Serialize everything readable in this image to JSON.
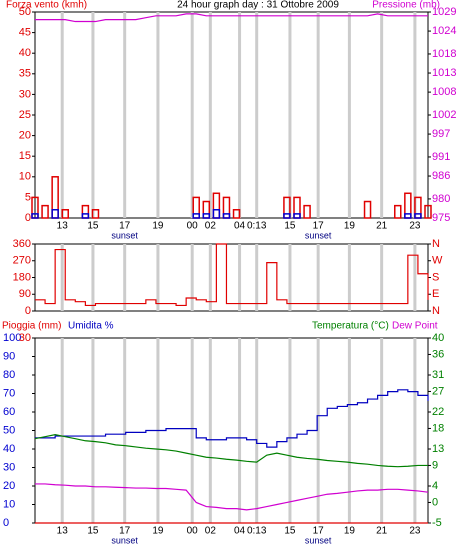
{
  "chart_data": [
    {
      "type": "combo",
      "title": "24 hour graph day : 31 Ottobre 2009",
      "ylabel": "Forza vento (kmh)",
      "y2label": "Pressione (mb)",
      "xlim": [
        0,
        39
      ],
      "xticks": [
        {
          "value": 2.7,
          "label": "13"
        },
        {
          "value": 5.75,
          "label": "15"
        },
        {
          "value": 8.9,
          "label": "17"
        },
        {
          "value": 12.2,
          "label": "19"
        },
        {
          "value": 15.6,
          "label": "00"
        },
        {
          "value": 17.4,
          "label": "02"
        },
        {
          "value": 20.3,
          "label": "04"
        },
        {
          "value": 22,
          "label": "0:13"
        },
        {
          "value": 25.3,
          "label": "15"
        },
        {
          "value": 28.1,
          "label": "17"
        },
        {
          "value": 31.2,
          "label": "19"
        },
        {
          "value": 34.4,
          "label": "21"
        },
        {
          "value": 37.7,
          "label": "23"
        }
      ],
      "annotations": [
        {
          "text": "sunset",
          "x": 8.9
        },
        {
          "text": "sunset",
          "x": 28.1
        }
      ],
      "ylim": [
        0,
        50
      ],
      "yticks": [
        0,
        5,
        10,
        15,
        20,
        25,
        30,
        35,
        40,
        45,
        50
      ],
      "ytick_color": "#e00000",
      "y2lim": [
        975,
        1029
      ],
      "y2ticks": [
        975,
        980,
        986,
        991,
        997,
        1002,
        1008,
        1013,
        1018,
        1024,
        1029
      ],
      "y2tick_color": "#d000d0",
      "series": [
        {
          "name": "Forza vento (kmh)",
          "color": "#e00000",
          "kind": "bar",
          "axis": "y",
          "values": [
            5,
            3,
            10,
            2,
            0,
            3,
            2,
            0,
            0,
            0,
            0,
            0,
            0,
            0,
            0,
            0,
            5,
            4,
            6,
            5,
            2,
            0,
            0,
            0,
            0,
            5,
            5,
            3,
            0,
            0,
            0,
            0,
            0,
            4,
            0,
            0,
            3,
            6,
            5,
            3
          ]
        },
        {
          "color": "#0000d0",
          "kind": "bar",
          "axis": "y",
          "values": [
            1,
            0,
            2,
            0,
            0,
            1,
            0,
            0,
            0,
            0,
            0,
            0,
            0,
            0,
            0,
            0,
            1,
            1,
            2,
            1,
            0,
            0,
            0,
            0,
            0,
            1,
            1,
            0,
            0,
            0,
            0,
            0,
            0,
            0,
            0,
            0,
            0,
            1,
            1,
            0
          ]
        },
        {
          "name": "Pressione (mb)",
          "color": "#d000d0",
          "kind": "line",
          "axis": "y2",
          "values": [
            1027,
            1027,
            1027,
            1027,
            1026.5,
            1026.5,
            1026.5,
            1027,
            1027,
            1027,
            1027,
            1027.5,
            1028,
            1028,
            1028,
            1028.5,
            1028.5,
            1028,
            1028,
            1028,
            1028,
            1028,
            1028,
            1028,
            1028,
            1028,
            1028,
            1028,
            1028,
            1028,
            1028,
            1028,
            1028,
            1028,
            1028.5,
            1028,
            1028,
            1028,
            1028,
            1028
          ]
        }
      ]
    },
    {
      "type": "combo",
      "xlim": [
        0,
        39
      ],
      "xticks": [
        {
          "value": 2.7,
          "label": "13"
        },
        {
          "value": 5.75,
          "label": "15"
        },
        {
          "value": 8.9,
          "label": "17"
        },
        {
          "value": 12.2,
          "label": "19"
        },
        {
          "value": 15.6,
          "label": "00"
        },
        {
          "value": 17.4,
          "label": "02"
        },
        {
          "value": 20.3,
          "label": "04"
        },
        {
          "value": 22,
          "label": "0:13"
        },
        {
          "value": 25.3,
          "label": "15"
        },
        {
          "value": 28.1,
          "label": "17"
        },
        {
          "value": 31.2,
          "label": "19"
        },
        {
          "value": 34.4,
          "label": "21"
        },
        {
          "value": 37.7,
          "label": "23"
        }
      ],
      "ylim": [
        0,
        360
      ],
      "yticks": [
        0,
        90,
        180,
        270,
        360
      ],
      "ytick_color": "#e00000",
      "y2lim": [
        0,
        360
      ],
      "y2ticks": [
        {
          "value": 360,
          "label": "N"
        },
        {
          "value": 270,
          "label": "W"
        },
        {
          "value": 180,
          "label": "S"
        },
        {
          "value": 90,
          "label": "E"
        },
        {
          "value": 0,
          "label": "N"
        }
      ],
      "y2tick_color": "#e00000",
      "series": [
        {
          "color": "#e00000",
          "kind": "step",
          "axis": "y",
          "values": [
            60,
            40,
            330,
            60,
            50,
            30,
            40,
            40,
            40,
            40,
            40,
            60,
            40,
            40,
            30,
            70,
            60,
            50,
            360,
            40,
            40,
            40,
            40,
            260,
            60,
            40,
            40,
            40,
            40,
            40,
            40,
            40,
            40,
            40,
            40,
            40,
            40,
            300,
            200,
            60
          ]
        }
      ]
    },
    {
      "type": "combo",
      "xlim": [
        0,
        39
      ],
      "xticks": [
        {
          "value": 2.7,
          "label": "13"
        },
        {
          "value": 5.75,
          "label": "15"
        },
        {
          "value": 8.9,
          "label": "17"
        },
        {
          "value": 12.2,
          "label": "19"
        },
        {
          "value": 15.6,
          "label": "00"
        },
        {
          "value": 17.4,
          "label": "02"
        },
        {
          "value": 20.3,
          "label": "04"
        },
        {
          "value": 22,
          "label": "0:13"
        },
        {
          "value": 25.3,
          "label": "15"
        },
        {
          "value": 28.1,
          "label": "17"
        },
        {
          "value": 31.2,
          "label": "19"
        },
        {
          "value": 34.4,
          "label": "21"
        },
        {
          "value": 37.7,
          "label": "23"
        }
      ],
      "annotations": [
        {
          "text": "sunset",
          "x": 8.9
        },
        {
          "text": "sunset",
          "x": 28.1
        }
      ],
      "ylim": [
        0,
        100
      ],
      "yticks": [
        0,
        10,
        20,
        30,
        40,
        50,
        60,
        70,
        80,
        90,
        100
      ],
      "ytick_color": "#0000d0",
      "y3lim": [
        0,
        30
      ],
      "y3ticks": [
        30
      ],
      "y3tick_color": "#e00000",
      "y2lim": [
        -5,
        40
      ],
      "y2ticks": [
        -5,
        0,
        4,
        9,
        13,
        18,
        22,
        27,
        31,
        36,
        40
      ],
      "y2tick_color": "#008000",
      "series": [
        {
          "name": "Pioggia (mm)",
          "color": "#e00000",
          "kind": "line",
          "axis": "y3",
          "values": [
            0,
            0,
            0,
            0,
            0,
            0,
            0,
            0,
            0,
            0,
            0,
            0,
            0,
            0,
            0,
            0,
            0,
            0,
            0,
            0,
            0,
            0,
            0,
            0,
            0,
            0,
            0,
            0,
            0,
            0,
            0,
            0,
            0,
            0,
            0,
            0,
            0,
            0,
            0,
            0
          ]
        },
        {
          "name": "Umidita %",
          "color": "#0000c0",
          "kind": "step",
          "axis": "y",
          "values": [
            46,
            46,
            47,
            47,
            47,
            47,
            47,
            48,
            48,
            49,
            49,
            50,
            50,
            51,
            51,
            51,
            46,
            45,
            45,
            46,
            46,
            45,
            43,
            41,
            44,
            46,
            48,
            50,
            58,
            62,
            63,
            64,
            65,
            67,
            69,
            71,
            72,
            71,
            69,
            66
          ]
        },
        {
          "name": "Temperatura (°C)",
          "color": "#008000",
          "kind": "line",
          "axis": "y2",
          "values": [
            15.5,
            16,
            16.5,
            16,
            15.5,
            15,
            14.8,
            14.5,
            14,
            13.8,
            13.5,
            13.2,
            13,
            12.8,
            12.5,
            12,
            11.5,
            11,
            10.8,
            10.5,
            10.3,
            10,
            9.8,
            11.5,
            12,
            11.5,
            11,
            10.7,
            10.5,
            10.2,
            10,
            9.8,
            9.5,
            9.3,
            9,
            8.8,
            8.7,
            8.8,
            9,
            9
          ]
        },
        {
          "name": "Dew Point",
          "color": "#d000d0",
          "kind": "line",
          "axis": "y2",
          "values": [
            4.5,
            4.5,
            4.3,
            4.2,
            4,
            4,
            3.8,
            3.8,
            3.7,
            3.6,
            3.5,
            3.5,
            3.4,
            3.4,
            3.2,
            3,
            0,
            -1,
            -1.2,
            -1.5,
            -1.5,
            -1.8,
            -1.5,
            -1,
            -0.5,
            0,
            0.5,
            1,
            1.5,
            2,
            2.2,
            2.5,
            2.8,
            3,
            3,
            3.2,
            3.2,
            3,
            2.8,
            2.5
          ]
        }
      ]
    }
  ]
}
